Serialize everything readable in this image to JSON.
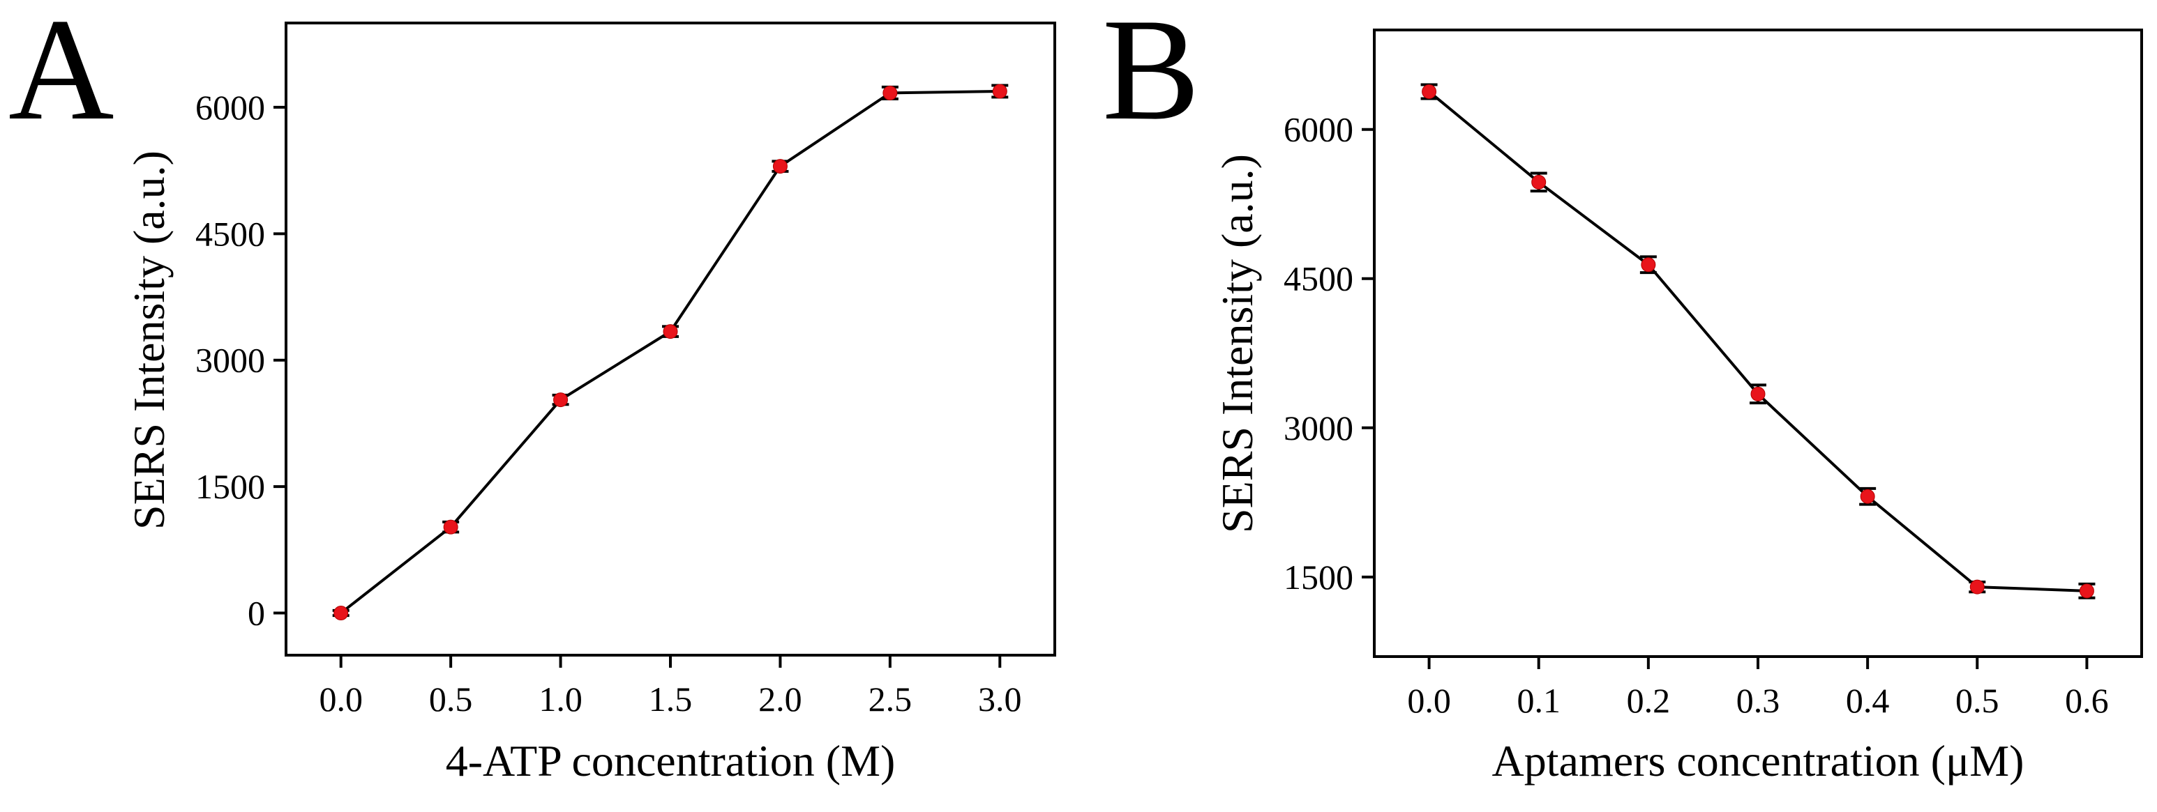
{
  "chart_data": [
    {
      "panel_label": "A",
      "type": "line",
      "title": "",
      "xlabel": "4-ATP concentration (M)",
      "ylabel": "SERS Intensity (a.u.)",
      "xlim": [
        -0.25,
        3.25
      ],
      "ylim": [
        -500,
        7000
      ],
      "x": [
        0.0,
        0.5,
        1.0,
        1.5,
        2.0,
        2.5,
        3.0
      ],
      "x_tick_labels": [
        "0.0",
        "0.5",
        "1.0",
        "1.5",
        "2.0",
        "2.5",
        "3.0"
      ],
      "y_ticks": [
        0,
        1500,
        3000,
        4500,
        6000
      ],
      "y_tick_labels": [
        "0",
        "1500",
        "3000",
        "4500",
        "6000"
      ],
      "series": [
        {
          "name": "SERS Intensity",
          "values": [
            0,
            1020,
            2530,
            3340,
            5300,
            6170,
            6190
          ],
          "errors": [
            30,
            60,
            55,
            60,
            60,
            70,
            70
          ],
          "marker_color": "#e8141b",
          "line_color": "#000000"
        }
      ],
      "grid": false,
      "legend": "none"
    },
    {
      "panel_label": "B",
      "type": "line",
      "title": "",
      "xlabel": "Aptamers concentration (μM)",
      "ylabel": "SERS Intensity (a.u.)",
      "xlim": [
        -0.05,
        0.65
      ],
      "ylim": [
        700,
        7000
      ],
      "x": [
        0.0,
        0.1,
        0.2,
        0.3,
        0.4,
        0.5,
        0.6
      ],
      "x_tick_labels": [
        "0.0",
        "0.1",
        "0.2",
        "0.3",
        "0.4",
        "0.5",
        "0.6"
      ],
      "y_ticks": [
        1500,
        3000,
        4500,
        6000
      ],
      "y_tick_labels": [
        "1500",
        "3000",
        "4500",
        "6000"
      ],
      "series": [
        {
          "name": "SERS Intensity",
          "values": [
            6380,
            5470,
            4640,
            3340,
            2310,
            1400,
            1360
          ],
          "errors": [
            70,
            90,
            80,
            90,
            80,
            50,
            70
          ],
          "marker_color": "#e8141b",
          "line_color": "#000000"
        }
      ],
      "grid": false,
      "legend": "none"
    }
  ]
}
